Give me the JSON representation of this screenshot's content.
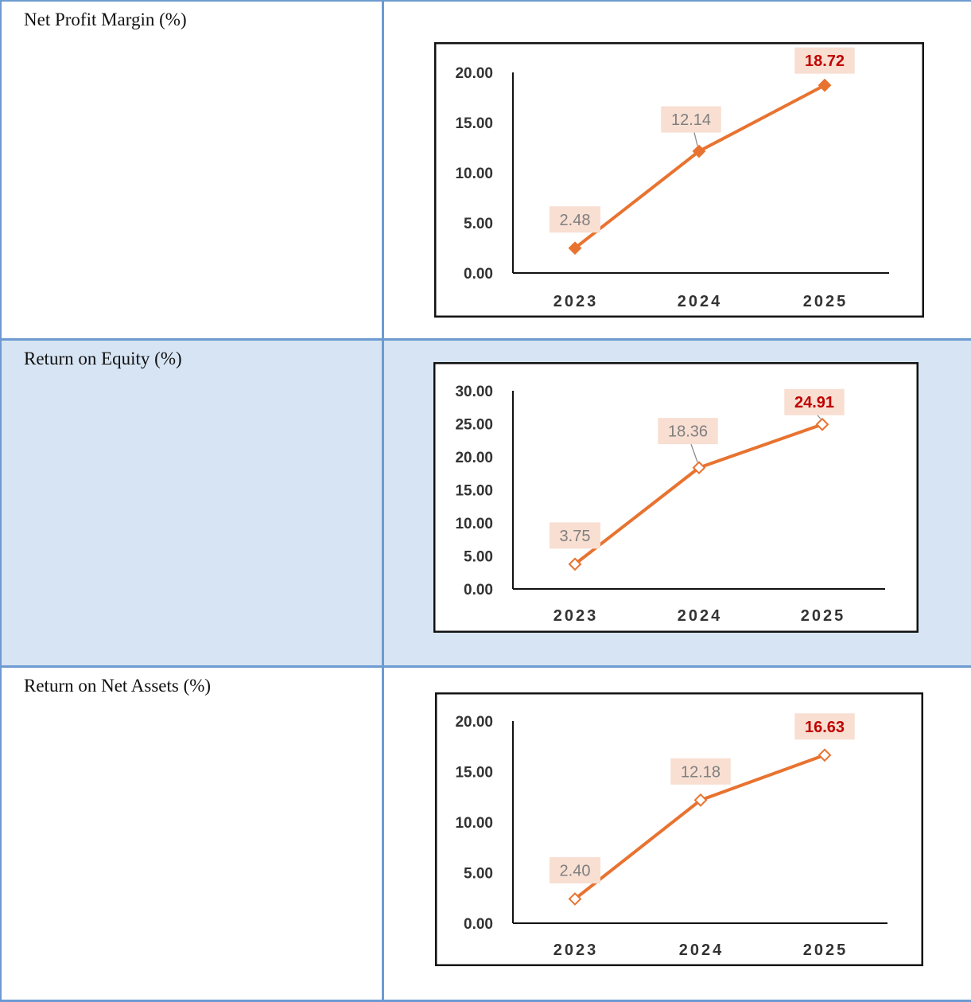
{
  "rows": [
    {
      "label": "Net Profit Margin (%)"
    },
    {
      "label": "Return on Equity (%)"
    },
    {
      "label": "Return on Net Assets (%)"
    }
  ],
  "colors": {
    "line": "#e87330",
    "marker_fill": "#e87330",
    "label_background": "#f8dfd2",
    "highlight_label": "#c00000",
    "normal_label": "#7f7f7f",
    "table_border": "#6d9bd1",
    "shaded_row": "#d6e4f4"
  },
  "chart_data": [
    {
      "type": "line",
      "categories": [
        "2023",
        "2024",
        "2025"
      ],
      "series": [
        {
          "values": [
            2.48,
            12.14,
            18.72
          ]
        }
      ],
      "data_labels": [
        "2.48",
        "12.14",
        "18.72"
      ],
      "highlight_index": 2,
      "yticks": [
        "0.00",
        "5.00",
        "10.00",
        "15.00",
        "20.00"
      ],
      "ylim": [
        0,
        20
      ],
      "marker": "filled-diamond",
      "grid": false,
      "legend": "none"
    },
    {
      "type": "line",
      "categories": [
        "2023",
        "2024",
        "2025"
      ],
      "series": [
        {
          "values": [
            3.75,
            18.36,
            24.91
          ]
        }
      ],
      "data_labels": [
        "3.75",
        "18.36",
        "24.91"
      ],
      "highlight_index": 2,
      "yticks": [
        "0.00",
        "5.00",
        "10.00",
        "15.00",
        "20.00",
        "25.00",
        "30.00"
      ],
      "ylim": [
        0,
        30
      ],
      "marker": "hollow-diamond",
      "grid": false,
      "legend": "none"
    },
    {
      "type": "line",
      "categories": [
        "2023",
        "2024",
        "2025"
      ],
      "series": [
        {
          "values": [
            2.4,
            12.18,
            16.63
          ]
        }
      ],
      "data_labels": [
        "2.40",
        "12.18",
        "16.63"
      ],
      "highlight_index": 2,
      "yticks": [
        "0.00",
        "5.00",
        "10.00",
        "15.00",
        "20.00"
      ],
      "ylim": [
        0,
        20
      ],
      "marker": "hollow-diamond",
      "grid": false,
      "legend": "none"
    }
  ]
}
